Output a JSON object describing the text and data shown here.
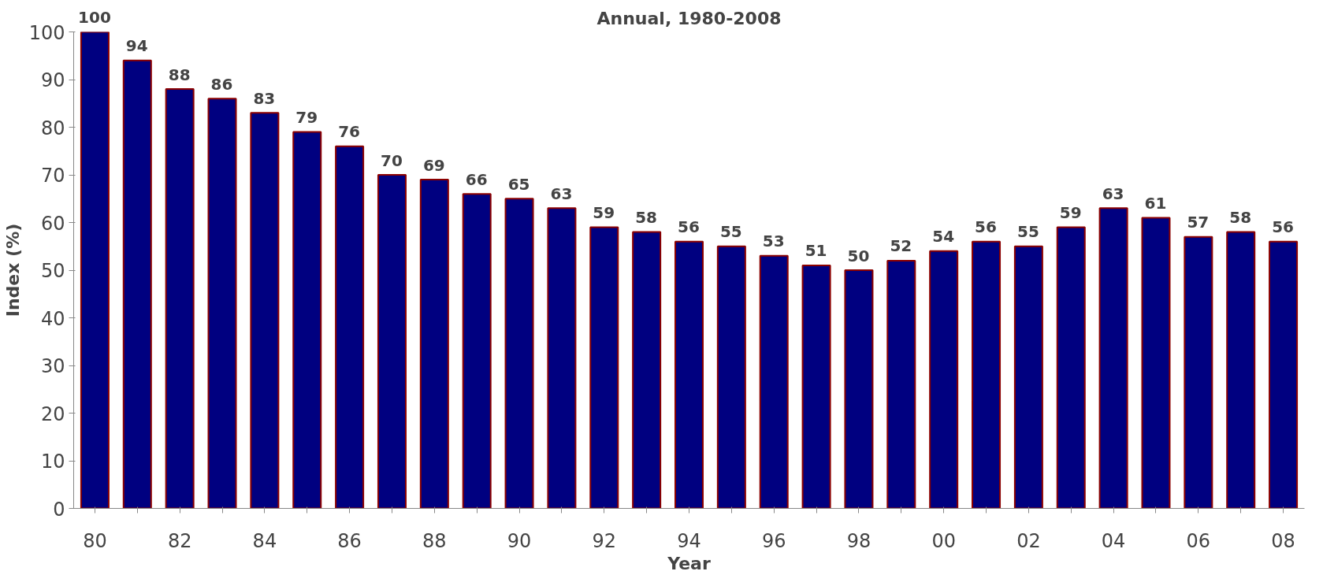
{
  "chart_data": {
    "type": "bar",
    "title": "Annual, 1980-2008",
    "xlabel": "Year",
    "ylabel": "Index (%)",
    "categories": [
      "80",
      null,
      "82",
      null,
      "84",
      null,
      "86",
      null,
      "88",
      null,
      "90",
      null,
      "92",
      null,
      "94",
      null,
      "96",
      null,
      "98",
      null,
      "00",
      null,
      "02",
      null,
      "04",
      null,
      "06",
      null,
      "08"
    ],
    "values": [
      100,
      94,
      88,
      86,
      83,
      79,
      76,
      70,
      69,
      66,
      65,
      63,
      59,
      58,
      56,
      55,
      53,
      51,
      50,
      52,
      54,
      56,
      55,
      59,
      63,
      61,
      57,
      58,
      56
    ],
    "color": "#000080",
    "ylim": [
      0,
      100
    ],
    "yticks": [
      0,
      10,
      20,
      30,
      40,
      50,
      60,
      70,
      80,
      90,
      100
    ],
    "grid": false,
    "data_labels": true
  }
}
